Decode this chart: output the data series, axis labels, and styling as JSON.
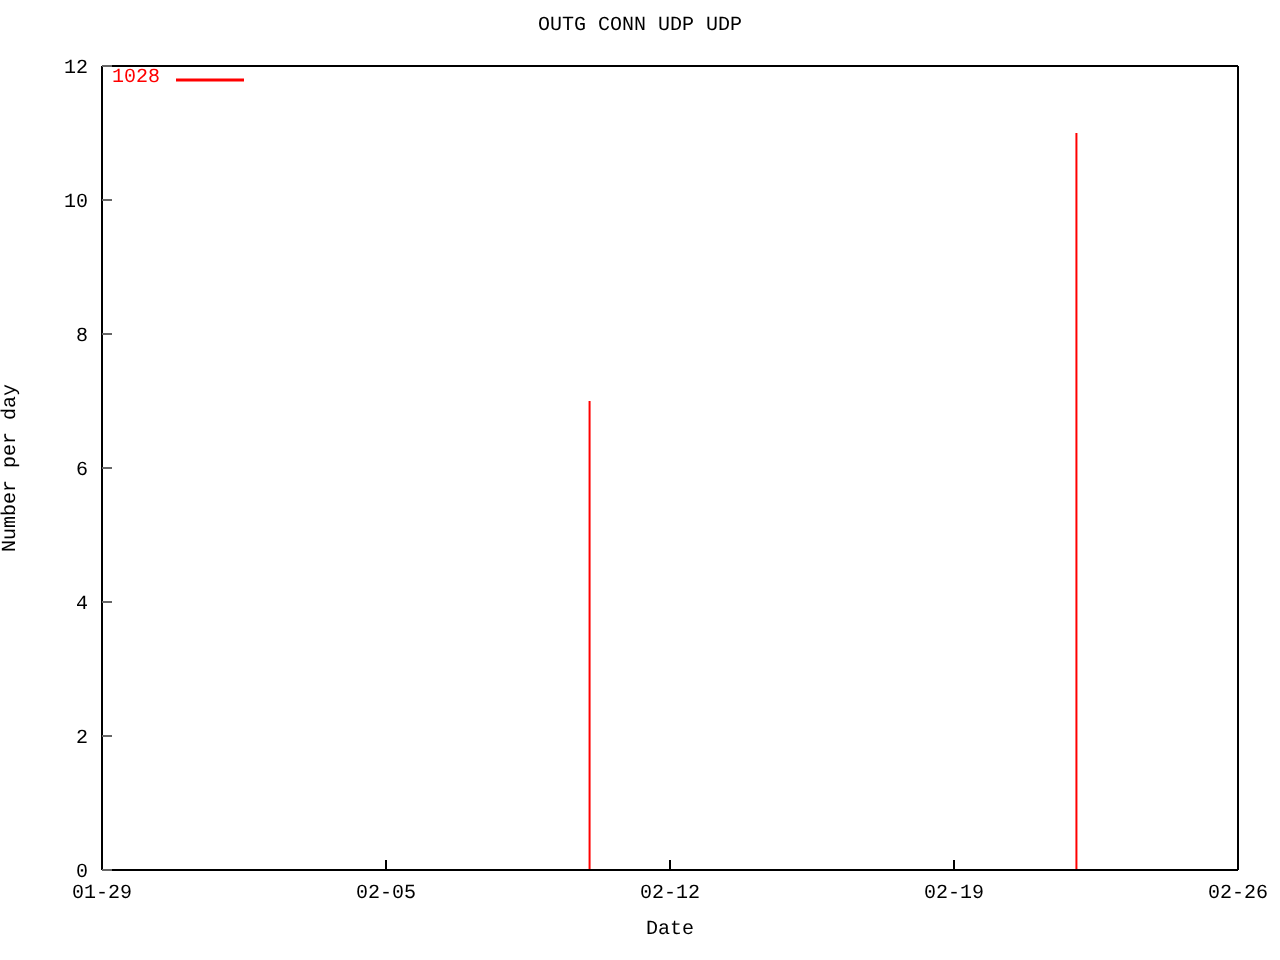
{
  "chart_data": {
    "type": "bar",
    "title": "OUTG CONN UDP UDP",
    "xlabel": "Date",
    "ylabel": "Number per day",
    "x": [
      "--02-01",
      "--02-02",
      "--02-03",
      "--02-04",
      "--02-05",
      "--02-06",
      "--02-07",
      "--02-08",
      "--02-09",
      "--02-10",
      "--02-11",
      "--02-12",
      "--02-13",
      "--02-14",
      "--02-15",
      "--02-16",
      "--02-17",
      "--02-18",
      "--02-19",
      "--02-20",
      "--02-21",
      "--02-22",
      "--02-23",
      "--02-24",
      "--02-25"
    ],
    "series": [
      {
        "name": "1028",
        "color": "#ff0000",
        "values": [
          0,
          0,
          0,
          0,
          0,
          0,
          0,
          0,
          0,
          7,
          0,
          0,
          0,
          0,
          0,
          0,
          0,
          0,
          0,
          0,
          0,
          11,
          0,
          0,
          0
        ]
      }
    ],
    "xlim": [
      "--01-29",
      "--02-26"
    ],
    "xticks": [
      {
        "value": "--01-29",
        "label": "01-29"
      },
      {
        "value": "--02-05",
        "label": "02-05"
      },
      {
        "value": "--02-12",
        "label": "02-12"
      },
      {
        "value": "--02-19",
        "label": "02-19"
      },
      {
        "value": "--02-26",
        "label": "02-26"
      }
    ],
    "ylim": [
      0,
      12
    ],
    "yticks": [
      0,
      2,
      4,
      6,
      8,
      10,
      12
    ],
    "legend": "top left"
  }
}
